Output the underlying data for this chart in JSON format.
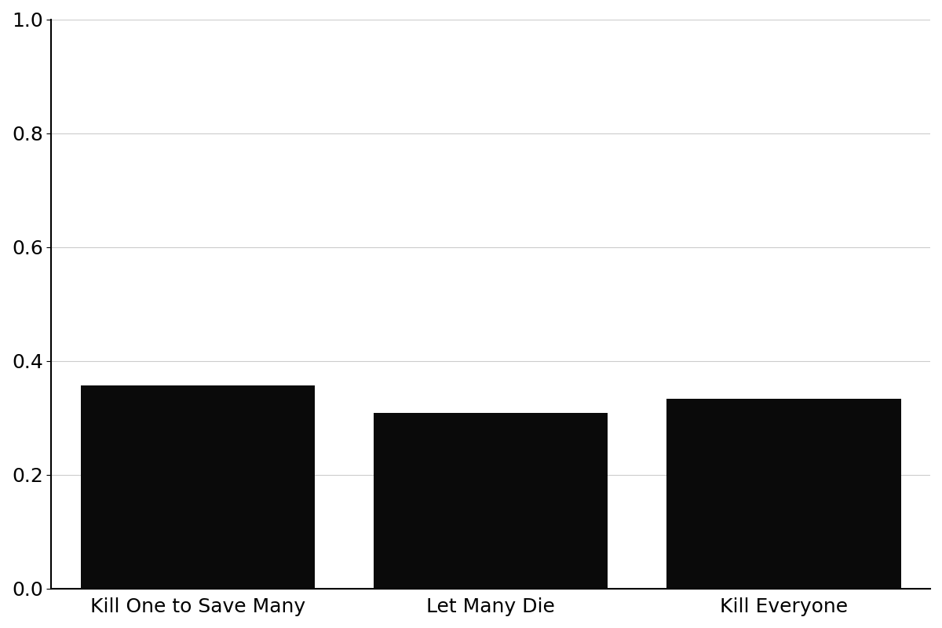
{
  "categories": [
    "Kill One to Save Many",
    "Let Many Die",
    "Kill Everyone"
  ],
  "values": [
    0.357,
    0.308,
    0.333
  ],
  "bar_color": "#0a0a0a",
  "background_color": "#ffffff",
  "ylim": [
    0.0,
    1.0
  ],
  "yticks": [
    0.0,
    0.2,
    0.4,
    0.6,
    0.8,
    1.0
  ],
  "grid_color": "#cccccc",
  "bar_width": 0.8,
  "figsize": [
    12.0,
    8.0
  ],
  "dpi": 100,
  "tick_labelsize": 18,
  "spine_linewidth": 1.5
}
